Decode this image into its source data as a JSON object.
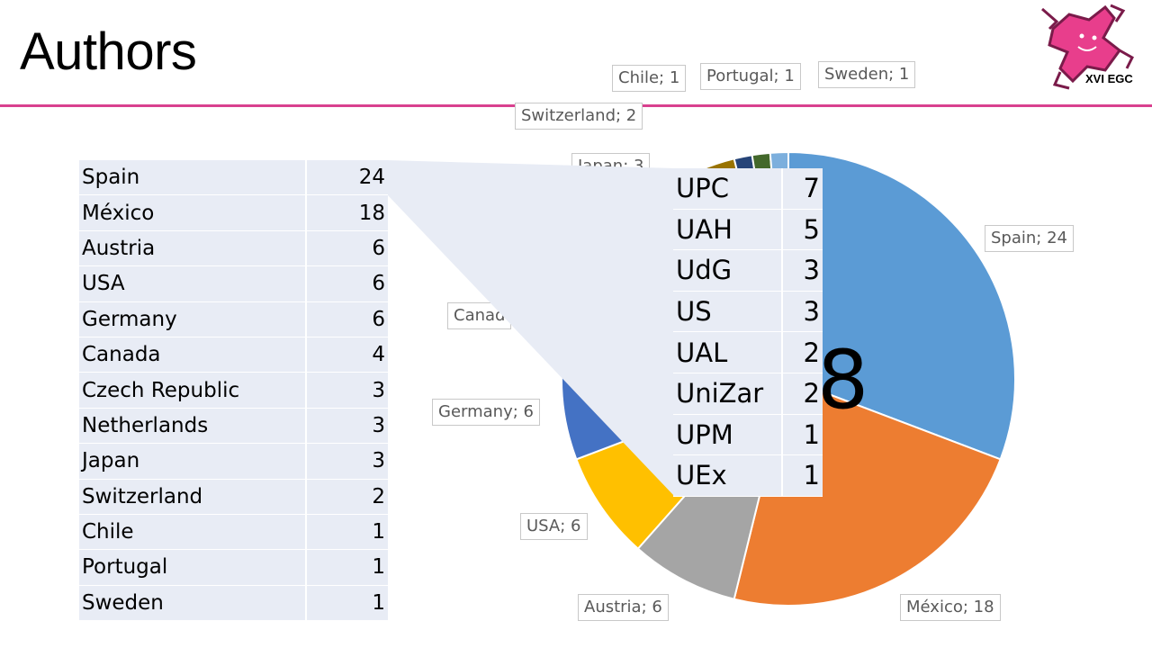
{
  "slide": {
    "title": "Authors",
    "logo_text": "XVI EGC",
    "accent": "#d9418f"
  },
  "chart_data": {
    "type": "pie",
    "start_angle_deg": 0,
    "slices": [
      {
        "label": "Spain",
        "value": 24,
        "color": "#5b9bd5"
      },
      {
        "label": "México",
        "value": 18,
        "color": "#ed7d31"
      },
      {
        "label": "Austria",
        "value": 6,
        "color": "#a5a5a5"
      },
      {
        "label": "USA",
        "value": 6,
        "color": "#ffc000"
      },
      {
        "label": "Germany",
        "value": 6,
        "color": "#4472c4"
      },
      {
        "label": "Canada",
        "value": 4,
        "color": "#70ad47"
      },
      {
        "label": "Czech Republic",
        "value": 3,
        "color": "#255e91"
      },
      {
        "label": "Netherlands",
        "value": 3,
        "color": "#9e480e"
      },
      {
        "label": "Japan",
        "value": 3,
        "color": "#636363"
      },
      {
        "label": "Switzerland",
        "value": 2,
        "color": "#997300"
      },
      {
        "label": "Chile",
        "value": 1,
        "color": "#264478"
      },
      {
        "label": "Portugal",
        "value": 1,
        "color": "#43682b"
      },
      {
        "label": "Sweden",
        "value": 1,
        "color": "#7cafdd"
      }
    ],
    "data_labels": [
      {
        "text": "Spain; 24"
      },
      {
        "text": "México; 18"
      },
      {
        "text": "Austria; 6"
      },
      {
        "text": "USA; 6"
      },
      {
        "text": "Germany; 6"
      },
      {
        "text": "Canad"
      },
      {
        "text": "Japan; 3"
      },
      {
        "text": "Switzerland; 2"
      },
      {
        "text": "Chile; 1"
      },
      {
        "text": "Portugal; 1"
      },
      {
        "text": "Sweden; 1"
      }
    ]
  },
  "country_table": [
    {
      "name": "Spain",
      "count": "24"
    },
    {
      "name": "México",
      "count": "18"
    },
    {
      "name": "Austria",
      "count": "6"
    },
    {
      "name": "USA",
      "count": "6"
    },
    {
      "name": "Germany",
      "count": "6"
    },
    {
      "name": "Canada",
      "count": "4"
    },
    {
      "name": "Czech Republic",
      "count": "3"
    },
    {
      "name": "Netherlands",
      "count": "3"
    },
    {
      "name": "Japan",
      "count": "3"
    },
    {
      "name": "Switzerland",
      "count": "2"
    },
    {
      "name": "Chile",
      "count": "1"
    },
    {
      "name": "Portugal",
      "count": "1"
    },
    {
      "name": "Sweden",
      "count": "1"
    }
  ],
  "spain_breakdown": {
    "visible_digit": "8",
    "rows": [
      {
        "name": "UPC",
        "count": "7"
      },
      {
        "name": "UAH",
        "count": "5"
      },
      {
        "name": "UdG",
        "count": "3"
      },
      {
        "name": "US",
        "count": "3"
      },
      {
        "name": "UAL",
        "count": "2"
      },
      {
        "name": "UniZar",
        "count": "2"
      },
      {
        "name": "UPM",
        "count": "1"
      },
      {
        "name": "UEx",
        "count": "1"
      }
    ]
  }
}
